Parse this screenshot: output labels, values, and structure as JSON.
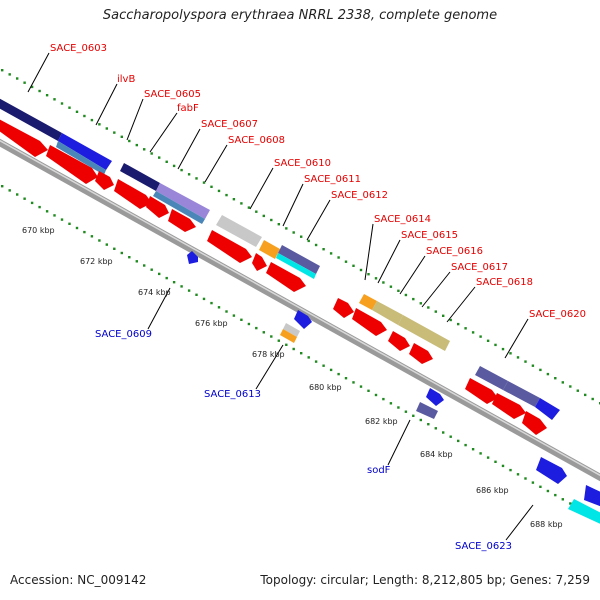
{
  "header": {
    "title": "Saccharopolyspora erythraea NRRL 2338, complete genome"
  },
  "footer": {
    "accession": "Accession: NC_009142",
    "summary": "Topology: circular; Length: 8,212,805 bp; Genes: 7,259"
  },
  "colors": {
    "forward_label": "#e60000",
    "reverse_label": "#0000cc",
    "scale_dots": "#1f8a1f",
    "backbone": "#9a9a9a",
    "cds_red": "#ee0000",
    "navy": "#1a1a6e",
    "blue": "#1d1de0",
    "slate": "#5a5aa0",
    "lavender": "#9a86d8",
    "light_gray": "#c8c8c8",
    "orange": "#f7a020",
    "khaki": "#c8bc78",
    "cyan": "#00e6e6",
    "steel": "#4a86b8"
  },
  "scale_labels": [
    "670 kbp",
    "672 kbp",
    "674 kbp",
    "676 kbp",
    "678 kbp",
    "680 kbp",
    "682 kbp",
    "684 kbp",
    "686 kbp",
    "688 kbp"
  ],
  "forward_gene_labels": [
    "SACE_0603",
    "ilvB",
    "SACE_0605",
    "fabF",
    "SACE_0607",
    "SACE_0608",
    "SACE_0610",
    "SACE_0611",
    "SACE_0612",
    "SACE_0614",
    "SACE_0615",
    "SACE_0616",
    "SACE_0617",
    "SACE_0618",
    "SACE_0620"
  ],
  "reverse_gene_labels": [
    "SACE_0609",
    "SACE_0613",
    "sodF",
    "SACE_0623"
  ]
}
